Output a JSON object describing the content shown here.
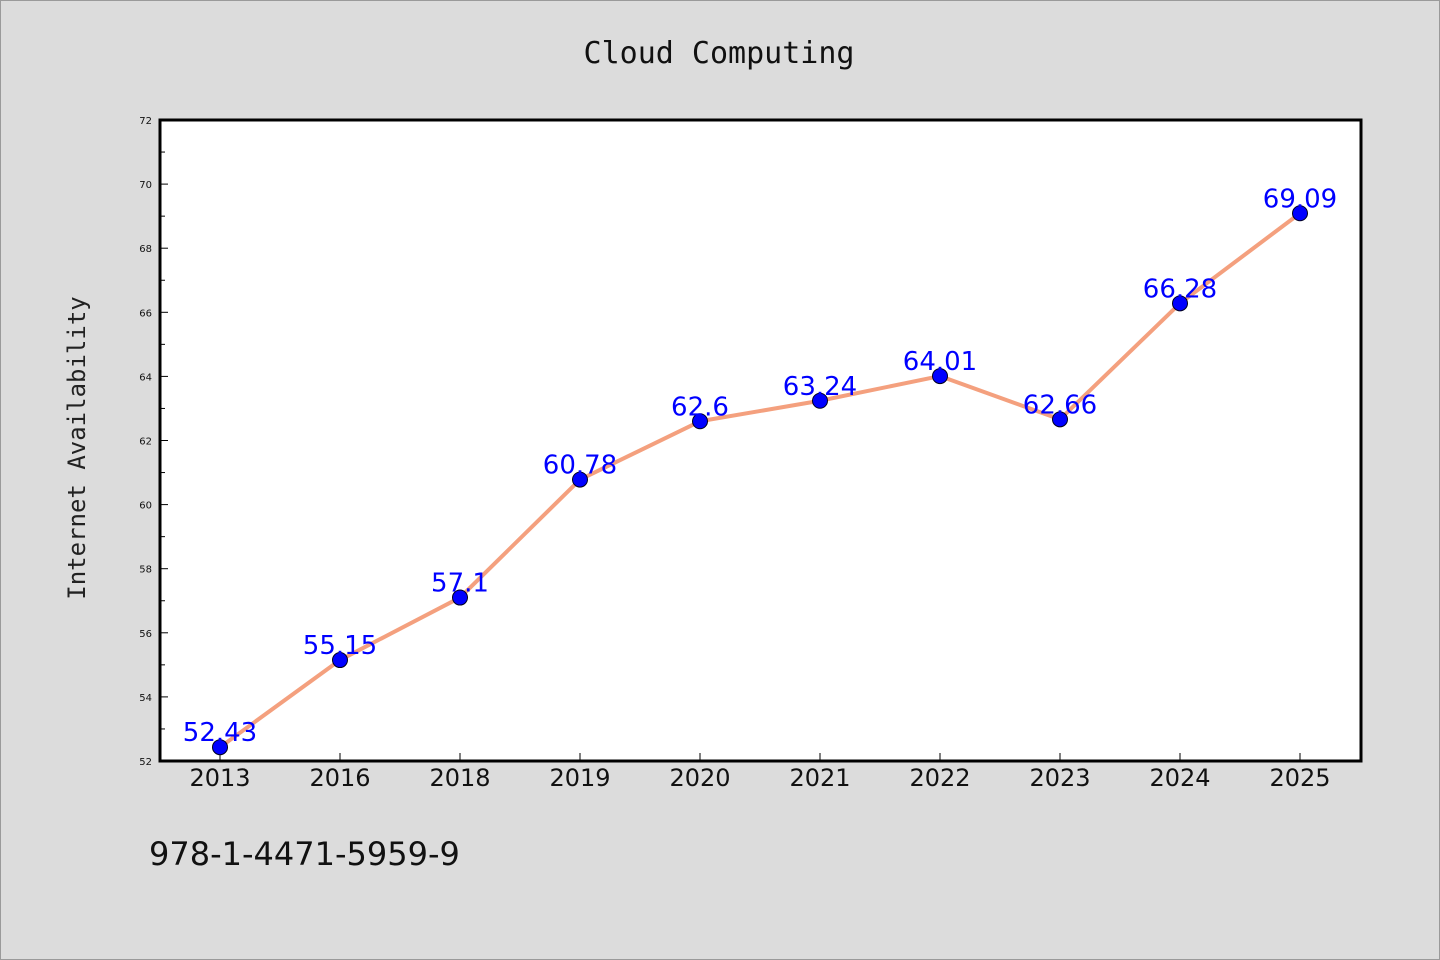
{
  "chart_data": {
    "type": "line",
    "title": "Cloud Computing",
    "xlabel": "",
    "ylabel": "Internet Availability",
    "categories": [
      "2013",
      "2016",
      "2018",
      "2019",
      "2020",
      "2021",
      "2022",
      "2023",
      "2024",
      "2025"
    ],
    "series": [
      {
        "values": [
          52.43,
          55.15,
          57.1,
          60.78,
          62.6,
          63.24,
          64.01,
          62.66,
          66.28,
          69.09
        ],
        "data_labels": [
          "52.43",
          "55.15",
          "57.1",
          "60.78",
          "62.6",
          "63.24",
          "64.01",
          "62.66",
          "66.28",
          "69.09"
        ],
        "line_color": "#f4a07e",
        "marker_color": "#0000ff"
      }
    ],
    "ylim": [
      52,
      72
    ],
    "yticks": [
      "52",
      "54",
      "56",
      "58",
      "60",
      "62",
      "64",
      "66",
      "68",
      "70",
      "72"
    ],
    "grid": false,
    "legend": "none",
    "plot_background": "#ffffff",
    "figure_background": "#dcdcdc"
  },
  "footer": {
    "text": "978-1-4471-5959-9"
  }
}
